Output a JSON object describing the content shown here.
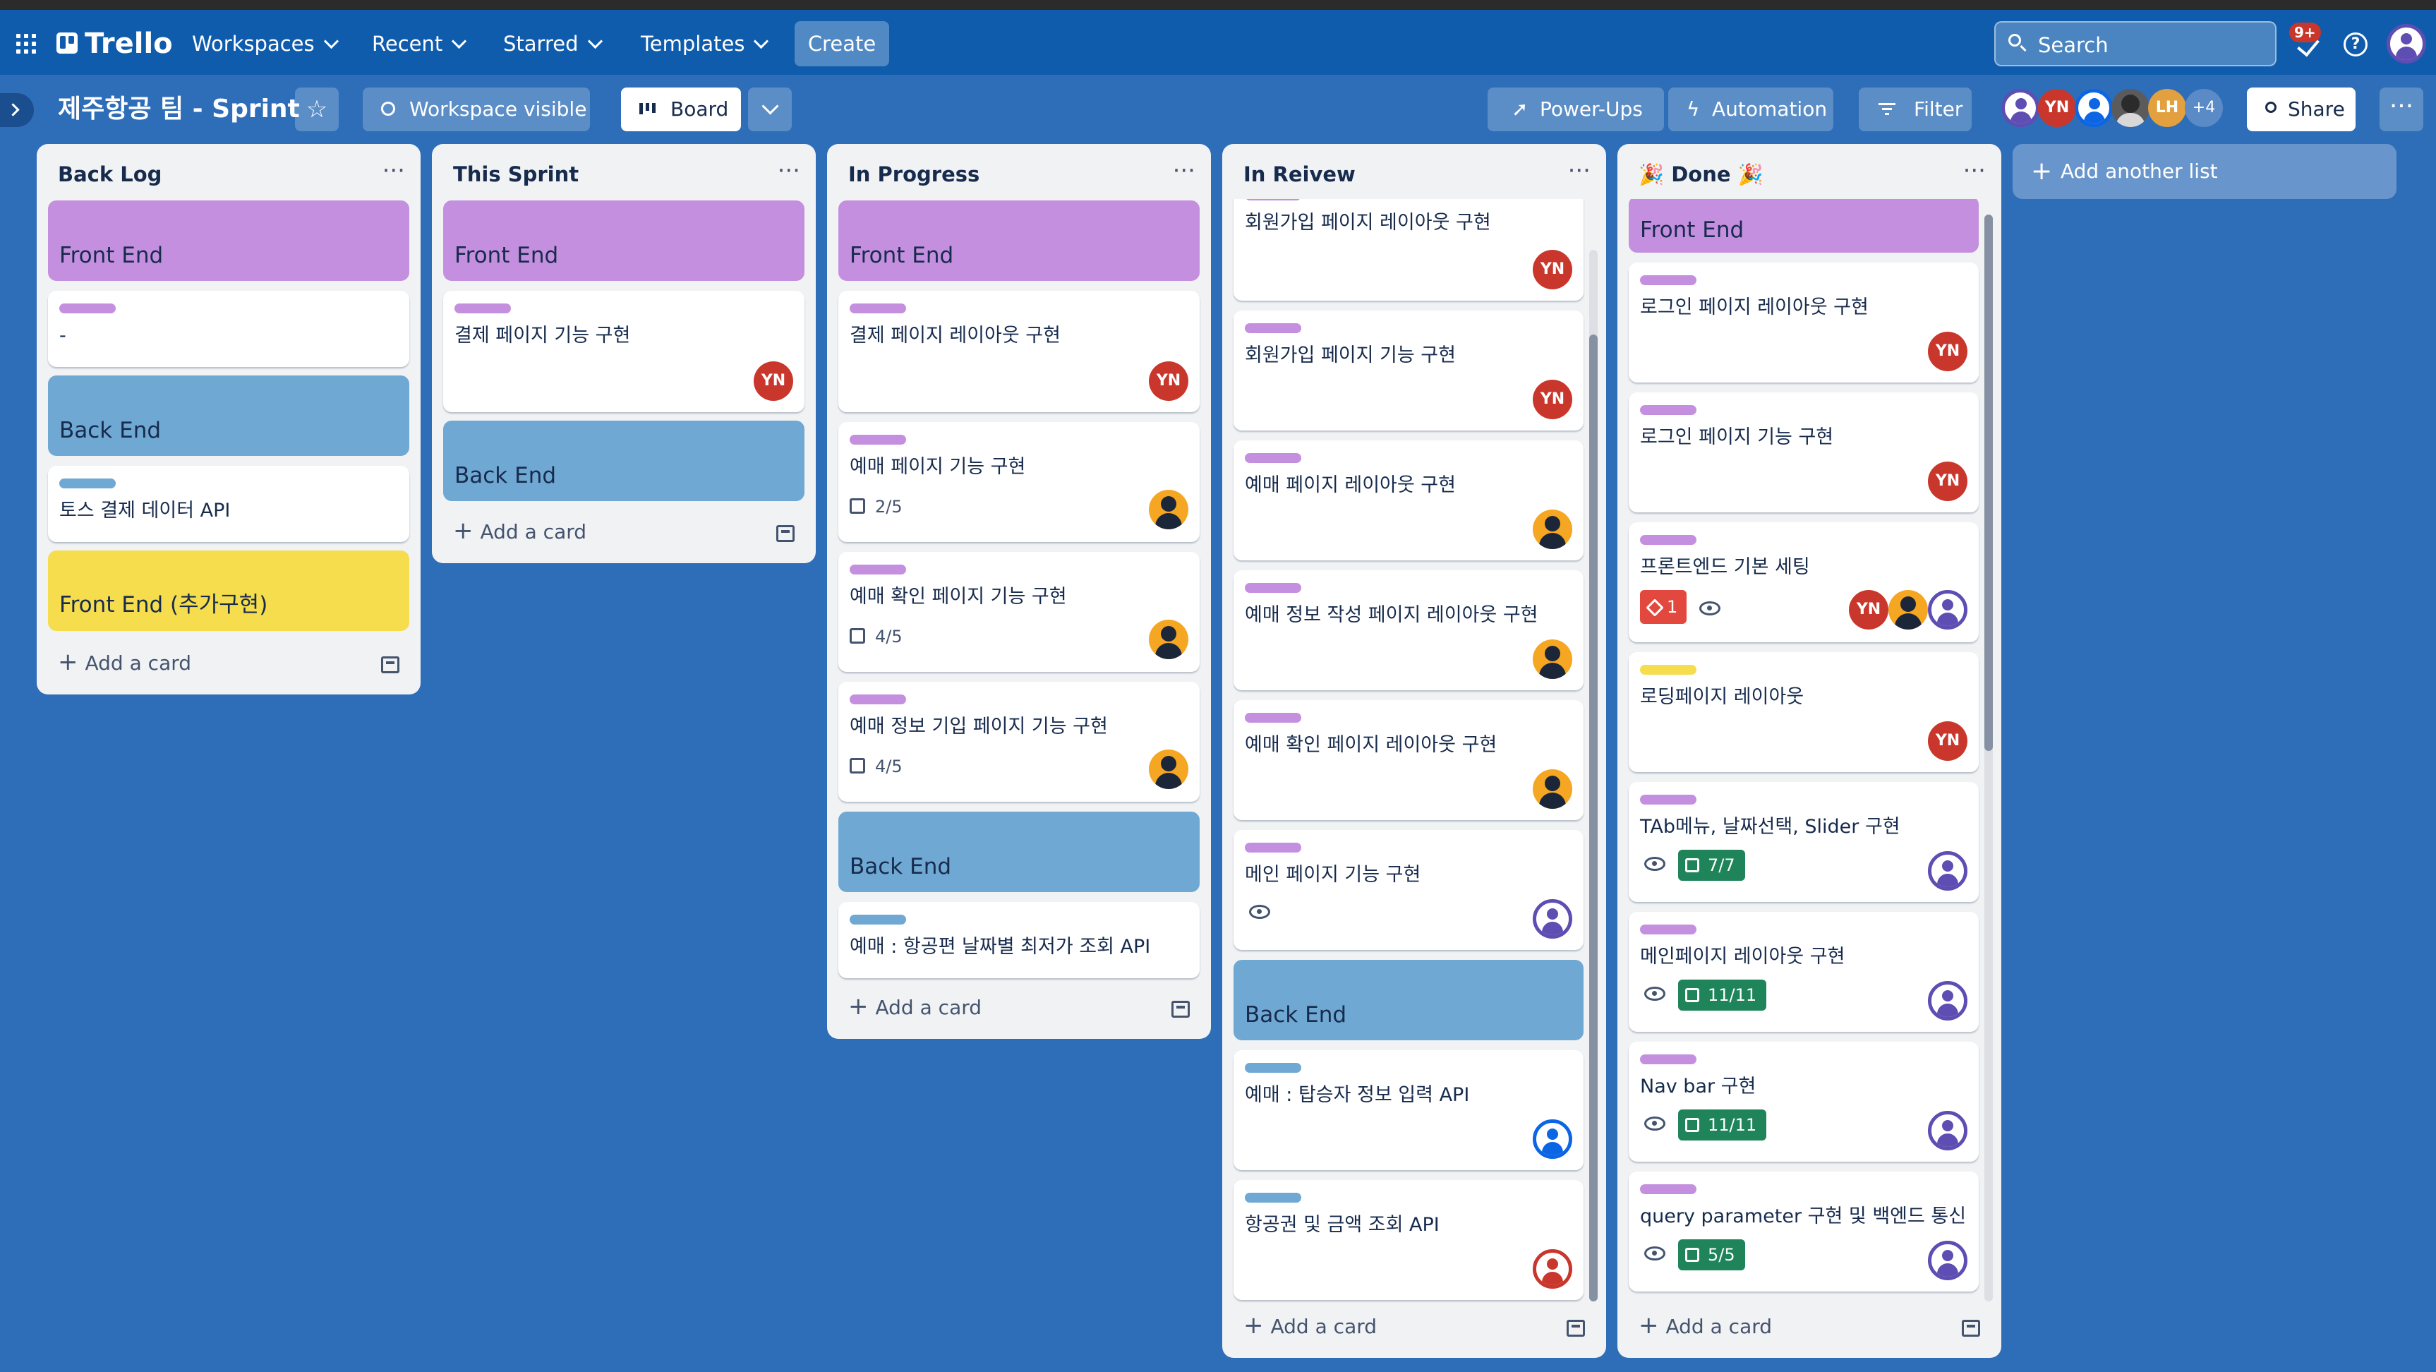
{
  "header": {
    "logo": "Trello",
    "nav": [
      "Workspaces",
      "Recent",
      "Starred",
      "Templates"
    ],
    "create_label": "Create",
    "search_placeholder": "Search",
    "notifications_badge": "9+"
  },
  "board": {
    "title": "제주항공 팀 - Sprint",
    "visibility_label": "Workspace visible",
    "view_label": "Board",
    "powerups_label": "Power-Ups",
    "automation_label": "Automation",
    "filter_label": "Filter",
    "members_initials": [
      "YN",
      "LH"
    ],
    "members_more": "+4",
    "share_label": "Share",
    "add_list_label": "Add another list"
  },
  "lists": [
    {
      "title": "Back Log",
      "cards": [
        {
          "type": "separator",
          "text": "Front End",
          "color": "#c58fdf"
        },
        {
          "type": "card",
          "label": "#c58fdf",
          "title": "-"
        },
        {
          "type": "separator",
          "text": "Back End",
          "color": "#6fa8d3"
        },
        {
          "type": "card",
          "label": "#6fa8d3",
          "title": "토스 결제 데이터 API"
        },
        {
          "type": "separator",
          "text": "Front End (추가구현)",
          "color": "#f5dd4d"
        }
      ],
      "add_card": "Add a card"
    },
    {
      "title": "This Sprint",
      "cards": [
        {
          "type": "separator",
          "text": "Front End",
          "color": "#c58fdf"
        },
        {
          "type": "card",
          "label": "#c58fdf",
          "title": "결제 페이지 기능 구현",
          "members": [
            "YN"
          ]
        },
        {
          "type": "separator",
          "text": "Back End",
          "color": "#6fa8d3"
        }
      ],
      "add_card": "Add a card"
    },
    {
      "title": "In Progress",
      "cards": [
        {
          "type": "separator",
          "text": "Front End",
          "color": "#c58fdf"
        },
        {
          "type": "card",
          "label": "#c58fdf",
          "title": "결제 페이지 레이아웃 구현",
          "members": [
            "YN"
          ]
        },
        {
          "type": "card",
          "label": "#c58fdf",
          "title": "예매 페이지 기능 구현",
          "checklist": "2/5",
          "members": [
            "orange"
          ]
        },
        {
          "type": "card",
          "label": "#c58fdf",
          "title": "예매 확인 페이지 기능 구현",
          "checklist": "4/5",
          "members": [
            "orange"
          ]
        },
        {
          "type": "card",
          "label": "#c58fdf",
          "title": "예매 정보 기입 페이지 기능 구현",
          "checklist": "4/5",
          "members": [
            "orange"
          ]
        },
        {
          "type": "separator",
          "text": "Back End",
          "color": "#6fa8d3"
        },
        {
          "type": "card",
          "label": "#6fa8d3",
          "title": "예매 : 항공편 날짜별 최저가 조회 API"
        }
      ],
      "add_card": "Add a card"
    },
    {
      "title": "In Reivew",
      "cards": [
        {
          "type": "card",
          "label": "#c58fdf",
          "title": "회원가입 페이지 레이아웃 구현",
          "members": [
            "YN"
          ]
        },
        {
          "type": "card",
          "label": "#c58fdf",
          "title": "회원가입 페이지 기능 구현",
          "members": [
            "YN"
          ]
        },
        {
          "type": "card",
          "label": "#c58fdf",
          "title": "예매 페이지 레이아웃 구현",
          "members": [
            "orange"
          ]
        },
        {
          "type": "card",
          "label": "#c58fdf",
          "title": "예매 정보 작성 페이지 레이아웃 구현",
          "members": [
            "orange"
          ]
        },
        {
          "type": "card",
          "label": "#c58fdf",
          "title": "예매 확인 페이지 레이아웃 구현",
          "members": [
            "orange"
          ]
        },
        {
          "type": "card",
          "label": "#c58fdf",
          "title": "메인 페이지 기능 구현",
          "watching": true,
          "members": [
            "purple"
          ]
        },
        {
          "type": "separator",
          "text": "Back End",
          "color": "#6fa8d3"
        },
        {
          "type": "card",
          "label": "#6fa8d3",
          "title": "예매 : 탑승자 정보 입력 API",
          "members": [
            "blue"
          ]
        },
        {
          "type": "card",
          "label": "#6fa8d3",
          "title": "항공권 및 금액 조회 API",
          "members": [
            "red"
          ]
        }
      ],
      "add_card": "Add a card"
    },
    {
      "title": "🎉 Done 🎉",
      "cards": [
        {
          "type": "separator",
          "text": "Front End",
          "color": "#c58fdf"
        },
        {
          "type": "card",
          "label": "#c58fdf",
          "title": "로그인 페이지 레이아웃 구현",
          "members": [
            "YN"
          ]
        },
        {
          "type": "card",
          "label": "#c58fdf",
          "title": "로그인 페이지 기능 구현",
          "members": [
            "YN"
          ]
        },
        {
          "type": "card",
          "label": "#c58fdf",
          "title": "프론트엔드 기본 세팅",
          "tasks": "1",
          "watching": true,
          "members": [
            "YN",
            "orange",
            "purple"
          ]
        },
        {
          "type": "card",
          "label": "#f5dd4d",
          "title": "로딩페이지 레이아웃",
          "members": [
            "YN"
          ]
        },
        {
          "type": "card",
          "label": "#c58fdf",
          "title": "TAb메뉴, 날짜선택, Slider 구현",
          "watching": true,
          "checklist_done": "7/7",
          "members": [
            "purple"
          ]
        },
        {
          "type": "card",
          "label": "#c58fdf",
          "title": "메인페이지 레이아웃 구현",
          "watching": true,
          "checklist_done": "11/11",
          "members": [
            "purple"
          ]
        },
        {
          "type": "card",
          "label": "#c58fdf",
          "title": "Nav bar 구현",
          "watching": true,
          "checklist_done": "11/11",
          "members": [
            "purple"
          ]
        },
        {
          "type": "card",
          "label": "#c58fdf",
          "title": "query parameter 구현 및 백엔드 통신",
          "watching": true,
          "checklist_done": "5/5",
          "members": [
            "purple"
          ]
        }
      ],
      "add_card": "Add a card"
    }
  ]
}
